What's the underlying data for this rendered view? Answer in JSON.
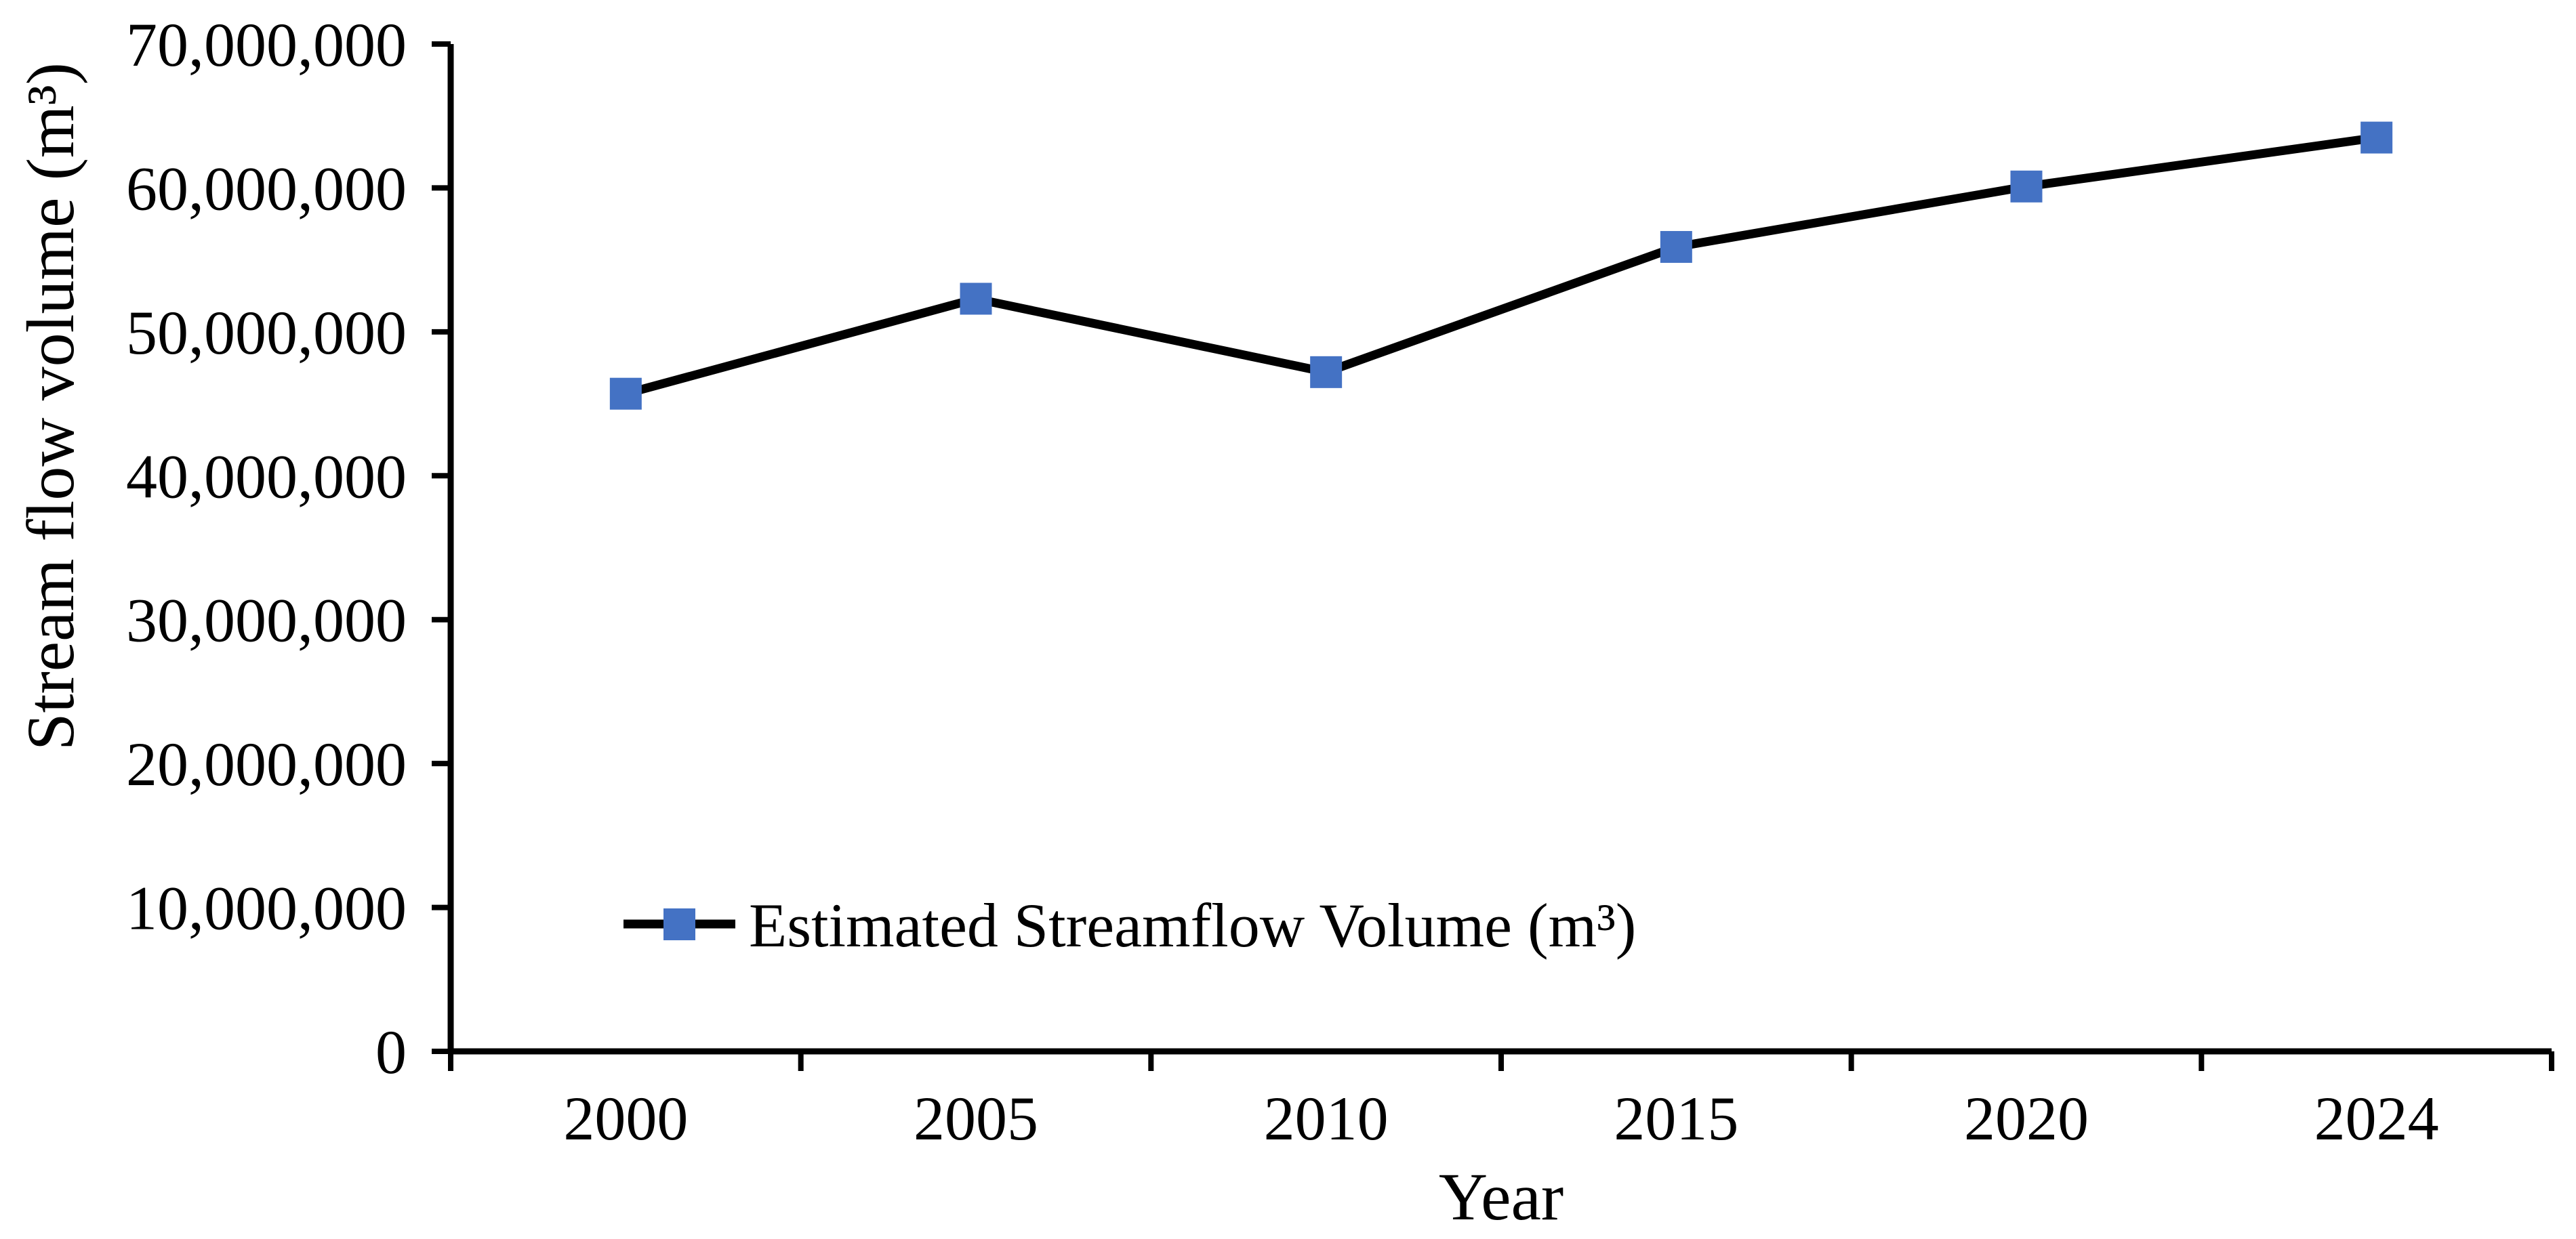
{
  "chart_data": {
    "type": "line",
    "title": "",
    "xlabel": "Year",
    "ylabel": "Stream flow volume (m³)",
    "categories": [
      "2000",
      "2005",
      "2010",
      "2015",
      "2020",
      "2024"
    ],
    "series": [
      {
        "name": "Estimated Streamflow Volume (m³)",
        "values": [
          45700000,
          52300000,
          47200000,
          55900000,
          60100000,
          63500000
        ]
      }
    ],
    "ylim": [
      0,
      70000000
    ],
    "ytick_step": 10000000,
    "ytick_labels": [
      "0",
      "10,000,000",
      "20,000,000",
      "30,000,000",
      "40,000,000",
      "50,000,000",
      "60,000,000",
      "70,000,000"
    ],
    "grid": false,
    "legend_position": "inside-lower-left",
    "line_color": "#000000",
    "marker_color": "#4472C4",
    "marker_shape": "square",
    "axis_color": "#000000",
    "background_color": "#FFFFFF"
  }
}
